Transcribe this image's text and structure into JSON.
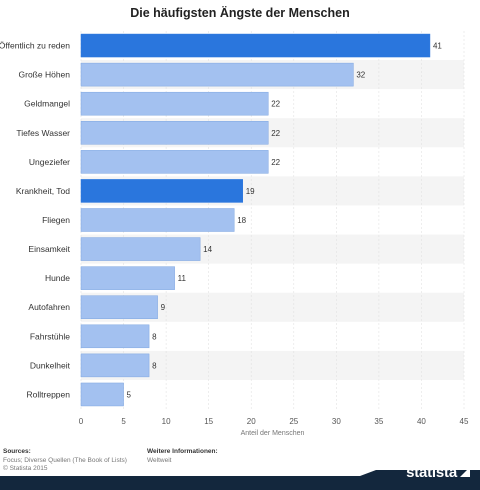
{
  "chart_data": {
    "type": "bar",
    "orientation": "horizontal",
    "title": "Die häufigsten Ängste der Menschen",
    "xlabel": "Anteil der Menschen",
    "ylabel": "",
    "xlim": [
      0,
      45
    ],
    "ticks": [
      "0",
      "5",
      "10",
      "15",
      "20",
      "25",
      "30",
      "35",
      "40",
      "45"
    ],
    "grid": true,
    "categories": [
      "Öffentlich zu reden",
      "Große Höhen",
      "Geldmangel",
      "Tiefes Wasser",
      "Ungeziefer",
      "Krankheit, Tod",
      "Fliegen",
      "Einsamkeit",
      "Hunde",
      "Autofahren",
      "Fahrstühle",
      "Dunkelheit",
      "Rolltreppen"
    ],
    "values": [
      41,
      32,
      22,
      22,
      22,
      19,
      18,
      14,
      11,
      9,
      8,
      8,
      5
    ],
    "highlighted": [
      true,
      false,
      false,
      false,
      false,
      true,
      false,
      false,
      false,
      false,
      false,
      false,
      false
    ],
    "colors": {
      "bar": "#a3c1f0",
      "bar_highlight": "#2a76dd",
      "bar_edge": "#7ea6e0",
      "stripe": "#f4f4f4"
    }
  },
  "footer": {
    "sources_heading": "Sources:",
    "sources_lines": [
      "Focus; Diverse Quellen (The Book of Lists)",
      "© Statista 2015"
    ],
    "info_heading": "Weitere Informationen:",
    "info_lines": [
      "Weltweit"
    ],
    "logo_text": "statista",
    "band_color": "#13273d"
  }
}
